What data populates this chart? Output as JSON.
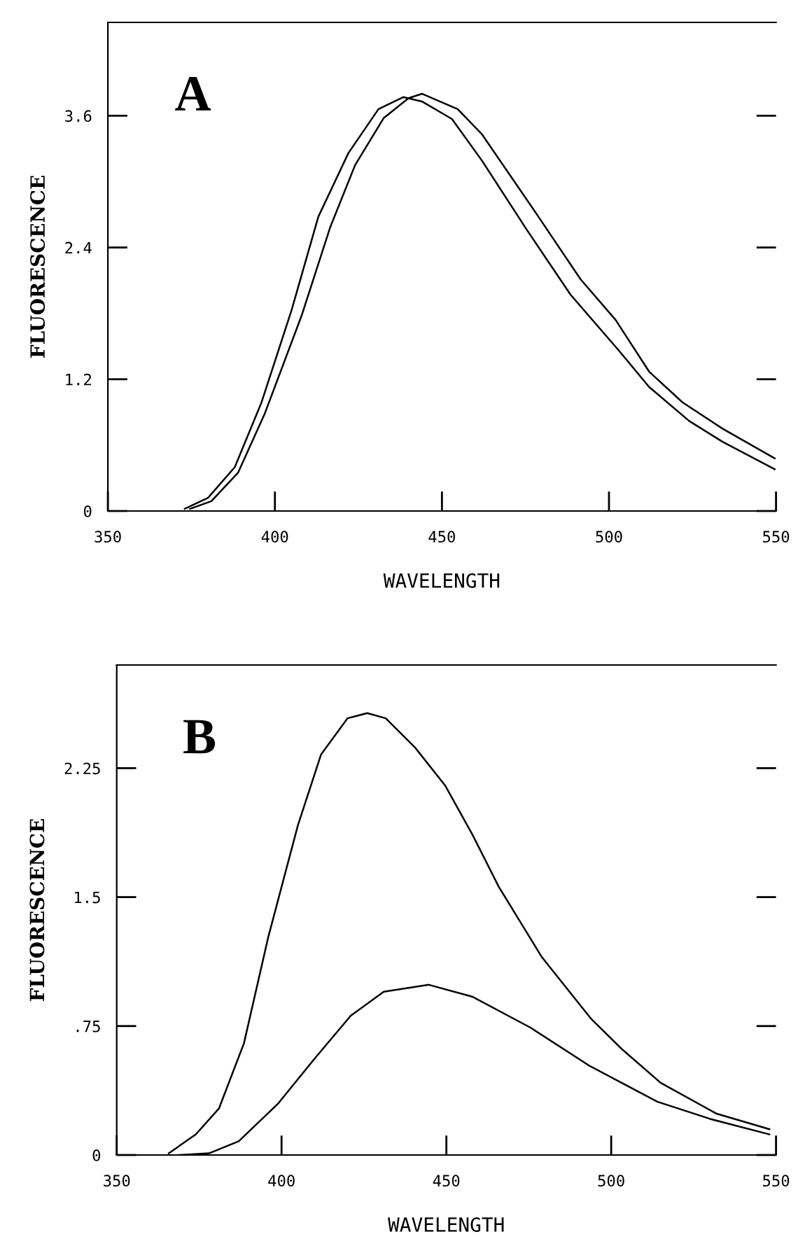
{
  "chart_data": [
    {
      "type": "line",
      "xlabel": "WAVELENGTH",
      "ylabel": "FLUORESCENCE",
      "annotations": [
        "A"
      ],
      "xlim": [
        350,
        550
      ],
      "xticks": [
        350,
        400,
        450,
        500,
        550
      ],
      "ylim": [
        0,
        4.45
      ],
      "yticks": [
        0,
        1.2,
        2.4,
        3.6
      ],
      "grid": false,
      "legend": false,
      "series": [
        {
          "color": "#000000",
          "x": [
            373,
            380,
            388,
            396,
            405,
            413,
            422,
            431,
            438.5,
            444,
            453,
            462,
            475,
            488.5,
            503,
            512,
            524,
            534,
            549.6
          ],
          "values": [
            0.02,
            0.12,
            0.4,
            0.99,
            1.83,
            2.68,
            3.26,
            3.66,
            3.77,
            3.73,
            3.57,
            3.19,
            2.58,
            1.97,
            1.46,
            1.13,
            0.82,
            0.63,
            0.38
          ]
        },
        {
          "color": "#000000",
          "x": [
            374.6,
            381,
            389,
            397,
            408,
            416.5,
            424,
            432.6,
            440,
            444,
            454.7,
            462,
            478,
            491.5,
            502,
            512,
            522,
            534,
            549.6
          ],
          "values": [
            0.02,
            0.09,
            0.35,
            0.89,
            1.78,
            2.58,
            3.15,
            3.58,
            3.76,
            3.8,
            3.66,
            3.43,
            2.72,
            2.11,
            1.74,
            1.27,
            0.99,
            0.75,
            0.48
          ]
        }
      ]
    },
    {
      "type": "line",
      "xlabel": "WAVELENGTH",
      "ylabel": "FLUORESCENCE",
      "annotations": [
        "B"
      ],
      "xlim": [
        350,
        550
      ],
      "xticks": [
        350,
        400,
        450,
        500,
        550
      ],
      "ylim": [
        0,
        2.85
      ],
      "yticks": [
        0,
        {
          "value": 0.75,
          "label": ".75"
        },
        1.5,
        2.25
      ],
      "grid": false,
      "legend": false,
      "series": [
        {
          "color": "#000000",
          "x": [
            365.8,
            374,
            381,
            388.6,
            396,
            405,
            412,
            420,
            426,
            431.6,
            440.5,
            449.6,
            458,
            465.9,
            479,
            494,
            503,
            515,
            532,
            548
          ],
          "values": [
            0.01,
            0.12,
            0.27,
            0.65,
            1.27,
            1.92,
            2.33,
            2.54,
            2.57,
            2.54,
            2.37,
            2.15,
            1.86,
            1.56,
            1.15,
            0.79,
            0.62,
            0.42,
            0.24,
            0.15
          ]
        },
        {
          "color": "#000000",
          "x": [
            369,
            378,
            387,
            399,
            410,
            421,
            431,
            444.7,
            458,
            475.6,
            493.3,
            514,
            530,
            548
          ],
          "values": [
            0,
            0.01,
            0.08,
            0.3,
            0.56,
            0.81,
            0.95,
            0.99,
            0.92,
            0.74,
            0.52,
            0.31,
            0.21,
            0.12
          ]
        }
      ]
    }
  ]
}
